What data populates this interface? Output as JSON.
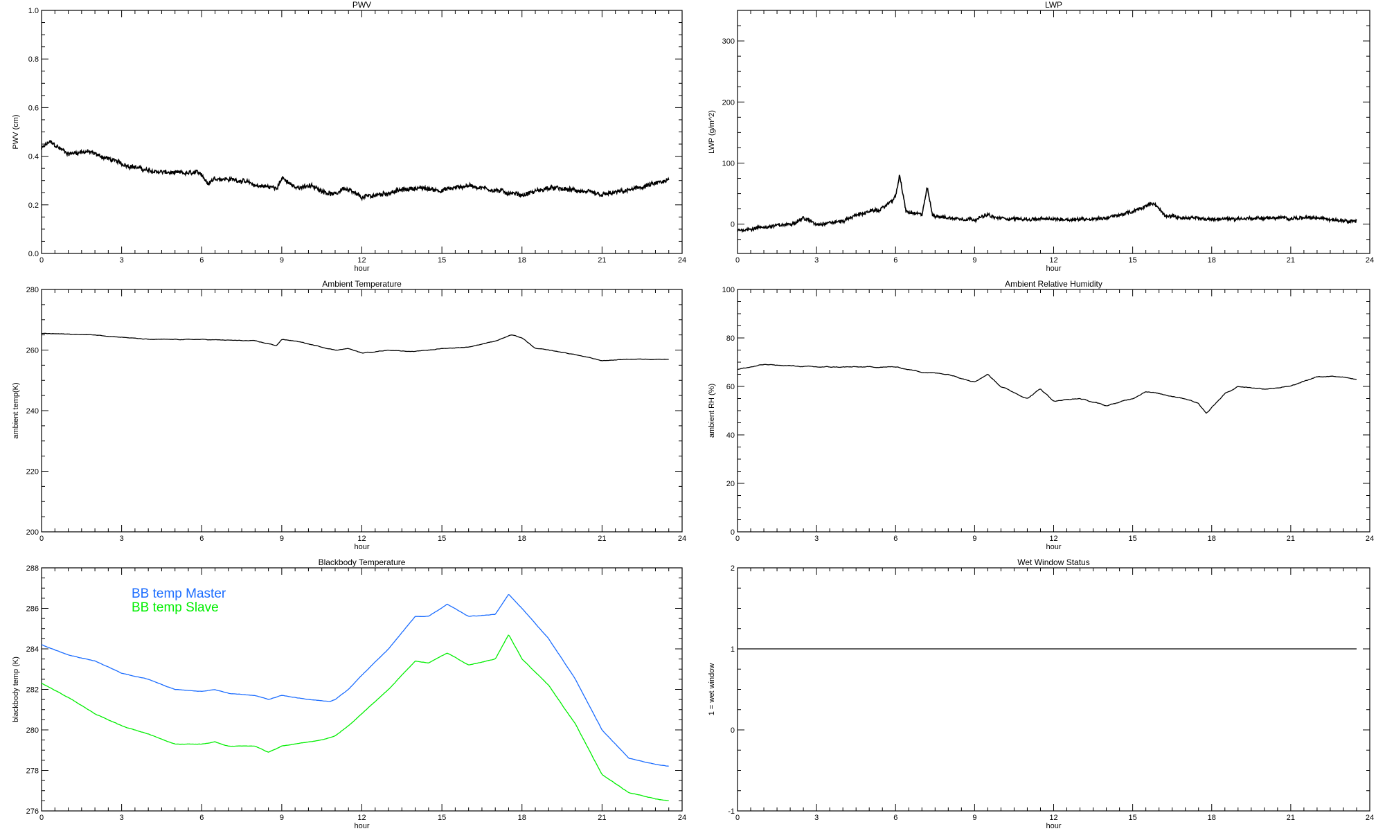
{
  "chart_data": [
    {
      "type": "line",
      "id": "pwv",
      "title": "PWV",
      "xlabel": "hour",
      "ylabel": "PWV (cm)",
      "xlim": [
        0,
        24
      ],
      "ylim": [
        0,
        1
      ],
      "xticks": [
        0,
        3,
        6,
        9,
        12,
        15,
        18,
        21,
        24
      ],
      "yticks": [
        0.0,
        0.2,
        0.4,
        0.6,
        0.8,
        1.0
      ],
      "ytick_labels": [
        "0.0",
        "0.2",
        "0.4",
        "0.6",
        "0.8",
        "1.0"
      ],
      "grid": false,
      "noisy": true,
      "series": [
        {
          "name": "PWV",
          "color": "#000000",
          "noise": 0.01,
          "points": [
            [
              0,
              0.43
            ],
            [
              0.3,
              0.46
            ],
            [
              1,
              0.41
            ],
            [
              1.7,
              0.42
            ],
            [
              2.5,
              0.39
            ],
            [
              3,
              0.37
            ],
            [
              4,
              0.34
            ],
            [
              5,
              0.33
            ],
            [
              6,
              0.33
            ],
            [
              6.2,
              0.29
            ],
            [
              6.5,
              0.31
            ],
            [
              7.5,
              0.3
            ],
            [
              8,
              0.28
            ],
            [
              8.8,
              0.27
            ],
            [
              9,
              0.31
            ],
            [
              9.5,
              0.27
            ],
            [
              10,
              0.28
            ],
            [
              11,
              0.24
            ],
            [
              11.3,
              0.27
            ],
            [
              12,
              0.23
            ],
            [
              12.5,
              0.24
            ],
            [
              13,
              0.25
            ],
            [
              14,
              0.27
            ],
            [
              15,
              0.26
            ],
            [
              16,
              0.28
            ],
            [
              17,
              0.26
            ],
            [
              18,
              0.24
            ],
            [
              19,
              0.27
            ],
            [
              20,
              0.26
            ],
            [
              21,
              0.24
            ],
            [
              22,
              0.26
            ],
            [
              23.5,
              0.3
            ]
          ]
        }
      ]
    },
    {
      "type": "line",
      "id": "lwp",
      "title": "LWP",
      "xlabel": "hour",
      "ylabel": "LWP (g/m^2)",
      "xlim": [
        0,
        24
      ],
      "ylim": [
        -48,
        350
      ],
      "xticks": [
        0,
        3,
        6,
        9,
        12,
        15,
        18,
        21,
        24
      ],
      "yticks": [
        0,
        100,
        200,
        300
      ],
      "ytick_labels": [
        "0",
        "100",
        "200",
        "300"
      ],
      "grid": false,
      "noisy": true,
      "series": [
        {
          "name": "LWP",
          "color": "#000000",
          "noise": 3,
          "points": [
            [
              0,
              -10
            ],
            [
              1,
              -5
            ],
            [
              2,
              0
            ],
            [
              2.5,
              10
            ],
            [
              3,
              0
            ],
            [
              4,
              5
            ],
            [
              4.5,
              15
            ],
            [
              5,
              20
            ],
            [
              5.5,
              25
            ],
            [
              6,
              45
            ],
            [
              6.15,
              80
            ],
            [
              6.4,
              20
            ],
            [
              7,
              15
            ],
            [
              7.2,
              60
            ],
            [
              7.4,
              15
            ],
            [
              8,
              10
            ],
            [
              9,
              8
            ],
            [
              9.5,
              15
            ],
            [
              9.8,
              10
            ],
            [
              11,
              8
            ],
            [
              12,
              8
            ],
            [
              13,
              8
            ],
            [
              14,
              10
            ],
            [
              15,
              20
            ],
            [
              15.8,
              35
            ],
            [
              16.2,
              15
            ],
            [
              17,
              10
            ],
            [
              18,
              8
            ],
            [
              20,
              10
            ],
            [
              22,
              10
            ],
            [
              23.5,
              5
            ]
          ]
        }
      ]
    },
    {
      "type": "line",
      "id": "ambient-temp",
      "title": "Ambient Temperature",
      "xlabel": "hour",
      "ylabel": "ambient temp(K)",
      "xlim": [
        0,
        24
      ],
      "ylim": [
        200,
        280
      ],
      "xticks": [
        0,
        3,
        6,
        9,
        12,
        15,
        18,
        21,
        24
      ],
      "yticks": [
        200,
        220,
        240,
        260,
        280
      ],
      "ytick_labels": [
        "200",
        "220",
        "240",
        "260",
        "280"
      ],
      "grid": false,
      "noisy": false,
      "series": [
        {
          "name": "ambient temp",
          "color": "#000000",
          "noise": 0.2,
          "points": [
            [
              0,
              265.5
            ],
            [
              2,
              265
            ],
            [
              4,
              263.5
            ],
            [
              6,
              263.5
            ],
            [
              8,
              263
            ],
            [
              8.8,
              261.5
            ],
            [
              9,
              263.5
            ],
            [
              9.5,
              263
            ],
            [
              10,
              262
            ],
            [
              11,
              260
            ],
            [
              11.5,
              260.5
            ],
            [
              12,
              259
            ],
            [
              13,
              260
            ],
            [
              14,
              259.5
            ],
            [
              15,
              260.5
            ],
            [
              16,
              261
            ],
            [
              17,
              263
            ],
            [
              17.3,
              264
            ],
            [
              17.6,
              265
            ],
            [
              18,
              264
            ],
            [
              18.5,
              260.5
            ],
            [
              19,
              260
            ],
            [
              20,
              258.5
            ],
            [
              21,
              256.5
            ],
            [
              22,
              257
            ],
            [
              23.5,
              257
            ]
          ]
        }
      ]
    },
    {
      "type": "line",
      "id": "ambient-rh",
      "title": "Ambient Relative Humidity",
      "xlabel": "hour",
      "ylabel": "ambient RH (%)",
      "xlim": [
        0,
        24
      ],
      "ylim": [
        0,
        100
      ],
      "xticks": [
        0,
        3,
        6,
        9,
        12,
        15,
        18,
        21,
        24
      ],
      "yticks": [
        0,
        20,
        40,
        60,
        80,
        100
      ],
      "ytick_labels": [
        "0",
        "20",
        "40",
        "60",
        "80",
        "100"
      ],
      "grid": false,
      "noisy": false,
      "series": [
        {
          "name": "ambient RH",
          "color": "#000000",
          "noise": 0.4,
          "points": [
            [
              0,
              67
            ],
            [
              1,
              69
            ],
            [
              3,
              68
            ],
            [
              4.5,
              68
            ],
            [
              6,
              68
            ],
            [
              7,
              66
            ],
            [
              8,
              65
            ],
            [
              9,
              62
            ],
            [
              9.5,
              65
            ],
            [
              10,
              60
            ],
            [
              11,
              55
            ],
            [
              11.5,
              59
            ],
            [
              12,
              54
            ],
            [
              13,
              55
            ],
            [
              14,
              52
            ],
            [
              15,
              55
            ],
            [
              15.5,
              58
            ],
            [
              16,
              57
            ],
            [
              17,
              55
            ],
            [
              17.5,
              53
            ],
            [
              17.8,
              49
            ],
            [
              18.5,
              57
            ],
            [
              19,
              60
            ],
            [
              20,
              59
            ],
            [
              21,
              60
            ],
            [
              22,
              64
            ],
            [
              23,
              64
            ],
            [
              23.5,
              63
            ]
          ]
        }
      ]
    },
    {
      "type": "line",
      "id": "blackbody-temp",
      "title": "Blackbody Temperature",
      "xlabel": "hour",
      "ylabel": "blackbody temp (K)",
      "xlim": [
        0,
        24
      ],
      "ylim": [
        276,
        288
      ],
      "xticks": [
        0,
        3,
        6,
        9,
        12,
        15,
        18,
        21,
        24
      ],
      "yticks": [
        276,
        278,
        280,
        282,
        284,
        286,
        288
      ],
      "ytick_labels": [
        "276",
        "278",
        "280",
        "282",
        "284",
        "286",
        "288"
      ],
      "grid": false,
      "noisy": false,
      "legend_placement": "top-left",
      "series": [
        {
          "name": "BB temp Master",
          "color": "#1a6cff",
          "noise": 0.02,
          "points": [
            [
              0,
              284.2
            ],
            [
              1,
              283.7
            ],
            [
              2,
              283.4
            ],
            [
              3,
              282.8
            ],
            [
              4,
              282.5
            ],
            [
              5,
              282
            ],
            [
              6,
              281.9
            ],
            [
              6.5,
              282
            ],
            [
              7,
              281.8
            ],
            [
              8,
              281.7
            ],
            [
              8.5,
              281.5
            ],
            [
              9,
              281.7
            ],
            [
              10,
              281.5
            ],
            [
              10.8,
              281.4
            ],
            [
              11,
              281.5
            ],
            [
              11.5,
              282
            ],
            [
              12,
              282.7
            ],
            [
              13,
              284
            ],
            [
              14,
              285.6
            ],
            [
              14.5,
              285.6
            ],
            [
              15.2,
              286.2
            ],
            [
              16,
              285.6
            ],
            [
              17,
              285.7
            ],
            [
              17.5,
              286.7
            ],
            [
              18,
              286
            ],
            [
              19,
              284.5
            ],
            [
              20,
              282.5
            ],
            [
              21,
              280
            ],
            [
              22,
              278.6
            ],
            [
              23,
              278.3
            ],
            [
              23.5,
              278.2
            ]
          ]
        },
        {
          "name": "BB temp Slave",
          "color": "#00ee00",
          "noise": 0.02,
          "points": [
            [
              0,
              282.3
            ],
            [
              1,
              281.6
            ],
            [
              2,
              280.8
            ],
            [
              3,
              280.2
            ],
            [
              4,
              279.8
            ],
            [
              5,
              279.3
            ],
            [
              6,
              279.3
            ],
            [
              6.5,
              279.4
            ],
            [
              7,
              279.2
            ],
            [
              8,
              279.2
            ],
            [
              8.5,
              278.9
            ],
            [
              9,
              279.2
            ],
            [
              10,
              279.4
            ],
            [
              10.5,
              279.5
            ],
            [
              11,
              279.7
            ],
            [
              11.5,
              280.2
            ],
            [
              12,
              280.8
            ],
            [
              13,
              282
            ],
            [
              14,
              283.4
            ],
            [
              14.5,
              283.3
            ],
            [
              15.2,
              283.8
            ],
            [
              16,
              283.2
            ],
            [
              17,
              283.5
            ],
            [
              17.5,
              284.7
            ],
            [
              18,
              283.5
            ],
            [
              19,
              282.2
            ],
            [
              20,
              280.3
            ],
            [
              21,
              277.8
            ],
            [
              22,
              276.9
            ],
            [
              23,
              276.6
            ],
            [
              23.5,
              276.5
            ]
          ]
        }
      ]
    },
    {
      "type": "line",
      "id": "wet-window",
      "title": "Wet Window Status",
      "xlabel": "hour",
      "ylabel": "1 = wet window",
      "xlim": [
        0,
        24
      ],
      "ylim": [
        -1,
        2
      ],
      "xticks": [
        0,
        3,
        6,
        9,
        12,
        15,
        18,
        21,
        24
      ],
      "yticks": [
        -1,
        0,
        1,
        2
      ],
      "ytick_labels": [
        "-1",
        "0",
        "1",
        "2"
      ],
      "grid": false,
      "noisy": false,
      "series": [
        {
          "name": "wet window",
          "color": "#000000",
          "noise": 0,
          "points": [
            [
              0,
              1
            ],
            [
              23.5,
              1
            ]
          ]
        }
      ]
    }
  ]
}
